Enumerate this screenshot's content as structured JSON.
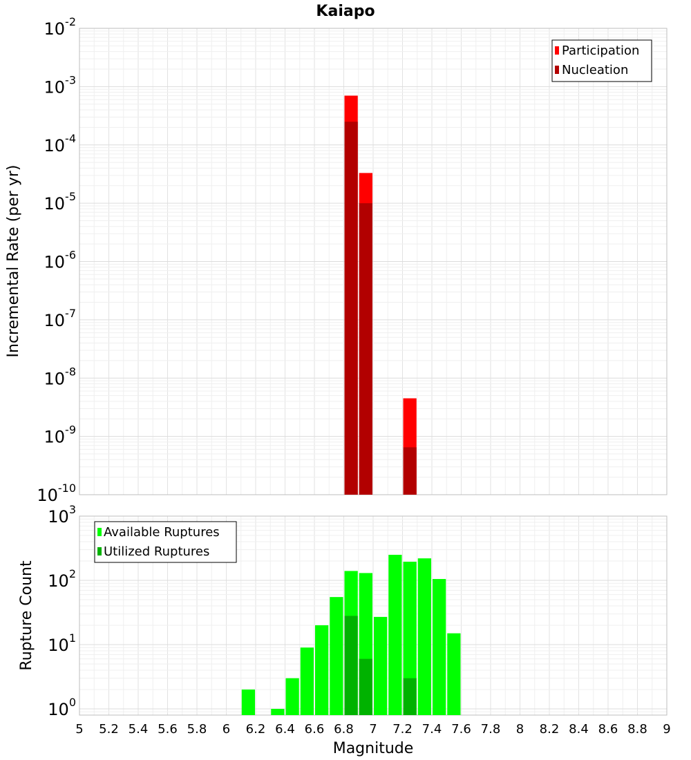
{
  "chart_data": [
    {
      "type": "bar",
      "title": "Kaiapo",
      "ylabel": "Incremental Rate (per yr)",
      "yscale": "log",
      "ylim": [
        1e-10,
        0.01
      ],
      "xlim": [
        5,
        9
      ],
      "grid": true,
      "legend_position": "top-right",
      "y_ticks": [
        {
          "base": "10",
          "exp": "-2"
        },
        {
          "base": "10",
          "exp": "-3"
        },
        {
          "base": "10",
          "exp": "-4"
        },
        {
          "base": "10",
          "exp": "-5"
        },
        {
          "base": "10",
          "exp": "-6"
        },
        {
          "base": "10",
          "exp": "-7"
        },
        {
          "base": "10",
          "exp": "-8"
        },
        {
          "base": "10",
          "exp": "-9"
        },
        {
          "base": "10",
          "exp": "-10"
        }
      ],
      "series": [
        {
          "name": "Participation",
          "color": "#ff0000",
          "x": [
            6.85,
            6.95,
            7.25
          ],
          "values": [
            0.0007,
            3.3e-05,
            4.5e-09
          ]
        },
        {
          "name": "Nucleation",
          "color": "#b20000",
          "x": [
            6.85,
            6.95,
            7.25
          ],
          "values": [
            0.00025,
            1e-05,
            6.5e-10
          ]
        }
      ]
    },
    {
      "type": "bar",
      "ylabel": "Rupture Count",
      "xlabel": "Magnitude",
      "yscale": "log",
      "ylim": [
        0.8,
        1000
      ],
      "xlim": [
        5,
        9
      ],
      "grid": true,
      "legend_position": "top-left",
      "y_ticks": [
        {
          "base": "10",
          "exp": "3"
        },
        {
          "base": "10",
          "exp": "2"
        },
        {
          "base": "10",
          "exp": "1"
        },
        {
          "base": "10",
          "exp": "0"
        }
      ],
      "x_tick_labels": [
        "5",
        "5.2",
        "5.4",
        "5.6",
        "5.8",
        "6",
        "6.2",
        "6.4",
        "6.6",
        "6.8",
        "7",
        "7.2",
        "7.4",
        "7.6",
        "7.8",
        "8",
        "8.2",
        "8.4",
        "8.6",
        "8.8",
        "9"
      ],
      "series": [
        {
          "name": "Available Ruptures",
          "color": "#00ff00",
          "x": [
            6.15,
            6.35,
            6.45,
            6.55,
            6.65,
            6.75,
            6.85,
            6.95,
            7.05,
            7.15,
            7.25,
            7.35,
            7.45,
            7.55
          ],
          "values": [
            2,
            1,
            3,
            9,
            20,
            55,
            140,
            130,
            27,
            250,
            195,
            220,
            105,
            15
          ]
        },
        {
          "name": "Utilized Ruptures",
          "color": "#00b200",
          "x": [
            6.85,
            6.95,
            7.25
          ],
          "values": [
            28,
            6,
            3
          ]
        }
      ]
    }
  ]
}
